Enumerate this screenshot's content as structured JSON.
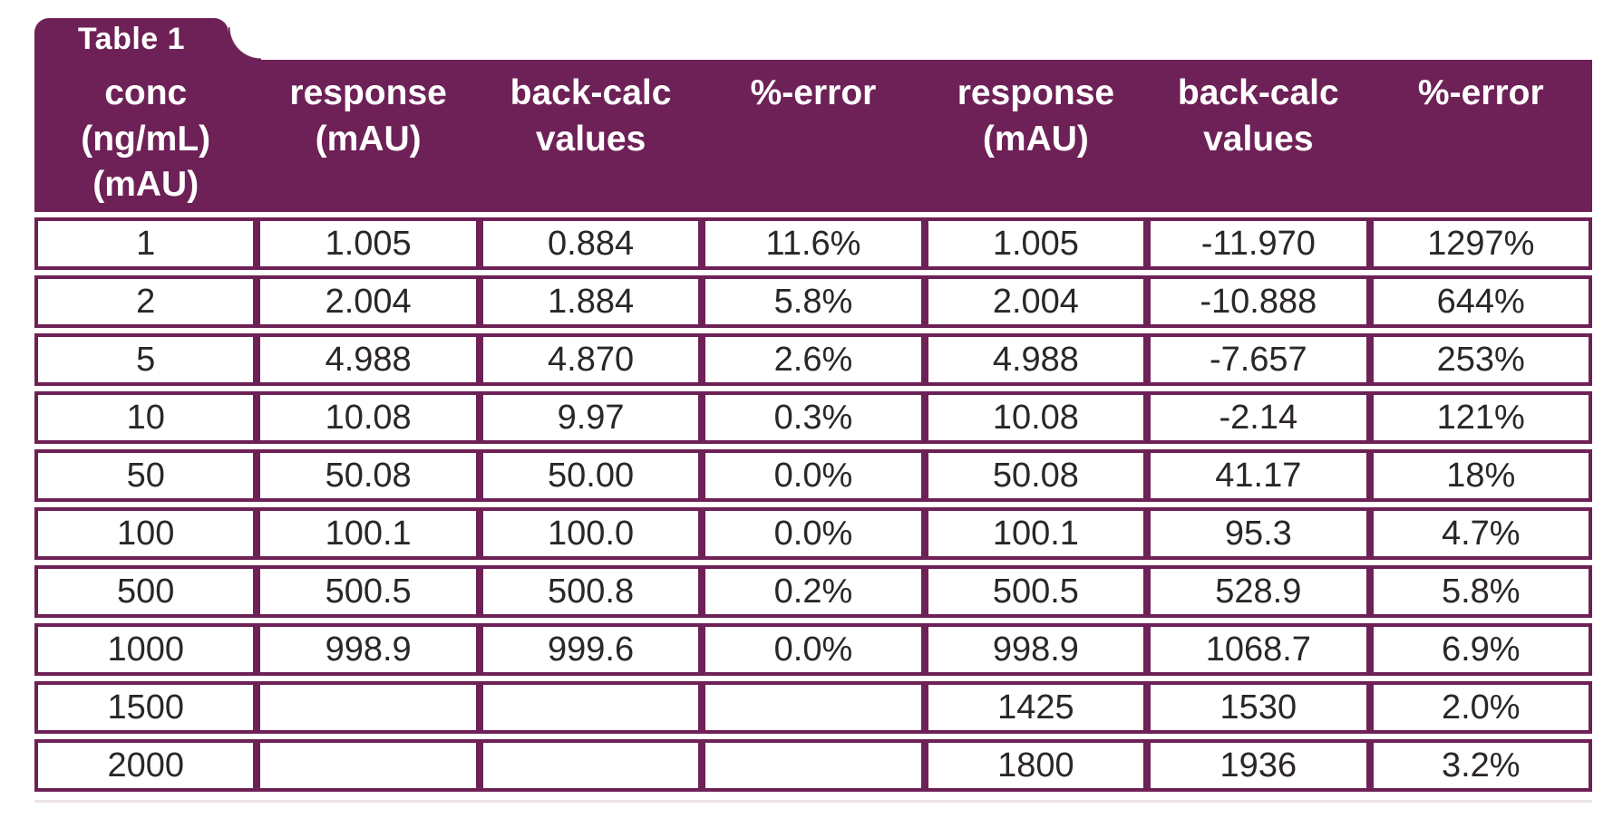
{
  "colors": {
    "accent": "#6E2156",
    "header_text": "#FFFFFF",
    "body_text": "#2B2627",
    "cell_background": "#FFFFFF",
    "divider": "#EAE3E7"
  },
  "chart_data": {
    "type": "table",
    "title": "Table 1",
    "columns": [
      {
        "id": "conc",
        "label": "conc (ng/mL) (mAU)",
        "lines": [
          "conc",
          "(ng/mL)",
          "(mAU)"
        ]
      },
      {
        "id": "response-1",
        "label": "response (mAU)",
        "lines": [
          "response",
          "(mAU)"
        ]
      },
      {
        "id": "back-calc-1",
        "label": "back-calc values",
        "lines": [
          "back-calc",
          "values"
        ]
      },
      {
        "id": "pct-error-1",
        "label": "%-error",
        "lines": [
          "%-error"
        ]
      },
      {
        "id": "response-2",
        "label": "response (mAU)",
        "lines": [
          "response",
          "(mAU)"
        ]
      },
      {
        "id": "back-calc-2",
        "label": "back-calc values",
        "lines": [
          "back-calc",
          "values"
        ]
      },
      {
        "id": "pct-error-2",
        "label": "%-error",
        "lines": [
          "%-error"
        ]
      }
    ],
    "rows": [
      [
        "1",
        "1.005",
        "0.884",
        "11.6%",
        "1.005",
        "-11.970",
        "1297%"
      ],
      [
        "2",
        "2.004",
        "1.884",
        "5.8%",
        "2.004",
        "-10.888",
        "644%"
      ],
      [
        "5",
        "4.988",
        "4.870",
        "2.6%",
        "4.988",
        "-7.657",
        "253%"
      ],
      [
        "10",
        "10.08",
        "9.97",
        "0.3%",
        "10.08",
        "-2.14",
        "121%"
      ],
      [
        "50",
        "50.08",
        "50.00",
        "0.0%",
        "50.08",
        "41.17",
        "18%"
      ],
      [
        "100",
        "100.1",
        "100.0",
        "0.0%",
        "100.1",
        "95.3",
        "4.7%"
      ],
      [
        "500",
        "500.5",
        "500.8",
        "0.2%",
        "500.5",
        "528.9",
        "5.8%"
      ],
      [
        "1000",
        "998.9",
        "999.6",
        "0.0%",
        "998.9",
        "1068.7",
        "6.9%"
      ],
      [
        "1500",
        "",
        "",
        "",
        "1425",
        "1530",
        "2.0%"
      ],
      [
        "2000",
        "",
        "",
        "",
        "1800",
        "1936",
        "3.2%"
      ]
    ]
  }
}
